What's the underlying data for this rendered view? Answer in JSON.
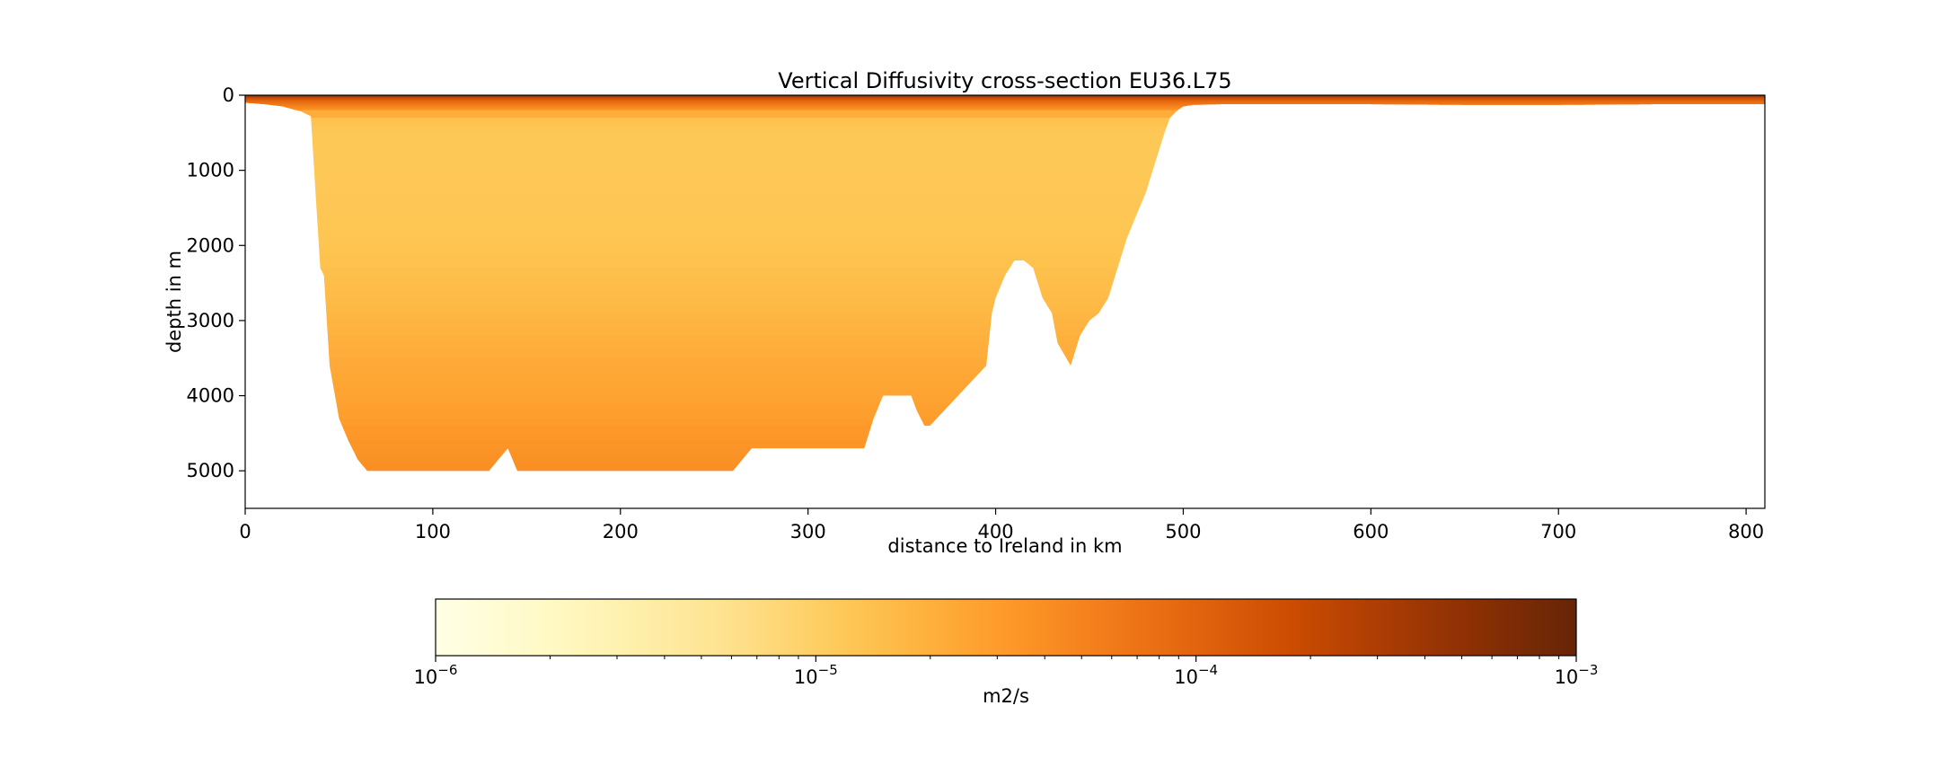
{
  "chart_data": {
    "type": "heatmap",
    "title": "Vertical Diffusivity cross-section EU36.L75",
    "xlabel": "distance to Ireland in km",
    "ylabel": "depth in m",
    "xlim": [
      0,
      810
    ],
    "ylim": [
      5500,
      0
    ],
    "x_ticks": [
      0,
      100,
      200,
      300,
      400,
      500,
      600,
      700,
      800
    ],
    "x_tick_labels": [
      "0",
      "100",
      "200",
      "300",
      "400",
      "500",
      "600",
      "700",
      "800"
    ],
    "y_ticks": [
      0,
      1000,
      2000,
      3000,
      4000,
      5000
    ],
    "y_tick_labels": [
      "0",
      "1000",
      "2000",
      "3000",
      "4000",
      "5000"
    ],
    "grid": false,
    "bathymetry_profile": {
      "distance_km": [
        0,
        10,
        20,
        30,
        35,
        38,
        40,
        42,
        45,
        50,
        55,
        60,
        65,
        70,
        130,
        140,
        145,
        250,
        260,
        270,
        330,
        335,
        340,
        355,
        358,
        362,
        365,
        395,
        398,
        400,
        405,
        410,
        415,
        420,
        425,
        430,
        433,
        440,
        445,
        450,
        455,
        460,
        465,
        470,
        475,
        480,
        485,
        490,
        493,
        497,
        500,
        505,
        520,
        550,
        600,
        650,
        700,
        750,
        800,
        810
      ],
      "depth_m": [
        100,
        120,
        150,
        220,
        280,
        1500,
        2300,
        2400,
        3600,
        4300,
        4600,
        4850,
        5000,
        5000,
        5000,
        4700,
        5000,
        5000,
        5000,
        4700,
        4700,
        4300,
        4000,
        4000,
        4200,
        4400,
        4400,
        3600,
        2900,
        2700,
        2400,
        2200,
        2200,
        2300,
        2700,
        2900,
        3300,
        3600,
        3200,
        3000,
        2900,
        2700,
        2300,
        1900,
        1600,
        1300,
        900,
        500,
        300,
        200,
        150,
        130,
        120,
        120,
        120,
        130,
        130,
        120,
        120,
        120
      ]
    },
    "diffusivity_by_depth_m2s": {
      "depth_m": [
        0,
        30,
        80,
        150,
        300,
        500,
        1000,
        2000,
        2500,
        3000,
        3500,
        4000,
        4500,
        5000
      ],
      "kz": [
        0.0008,
        0.0002,
        9e-05,
        5e-05,
        1.4e-05,
        1.2e-05,
        1.2e-05,
        1.3e-05,
        1.5e-05,
        1.8e-05,
        2.2e-05,
        2.6e-05,
        3.2e-05,
        4e-05
      ]
    },
    "colorbar": {
      "label": "m2/s",
      "scale": "log",
      "min": 1e-06,
      "max": 0.001,
      "colormap": "YlOrBr",
      "tick_values": [
        1e-06,
        1e-05,
        0.0001,
        0.001
      ],
      "tick_labels": [
        {
          "base": "10",
          "exp": "−6"
        },
        {
          "base": "10",
          "exp": "−5"
        },
        {
          "base": "10",
          "exp": "−4"
        },
        {
          "base": "10",
          "exp": "−3"
        }
      ]
    }
  }
}
